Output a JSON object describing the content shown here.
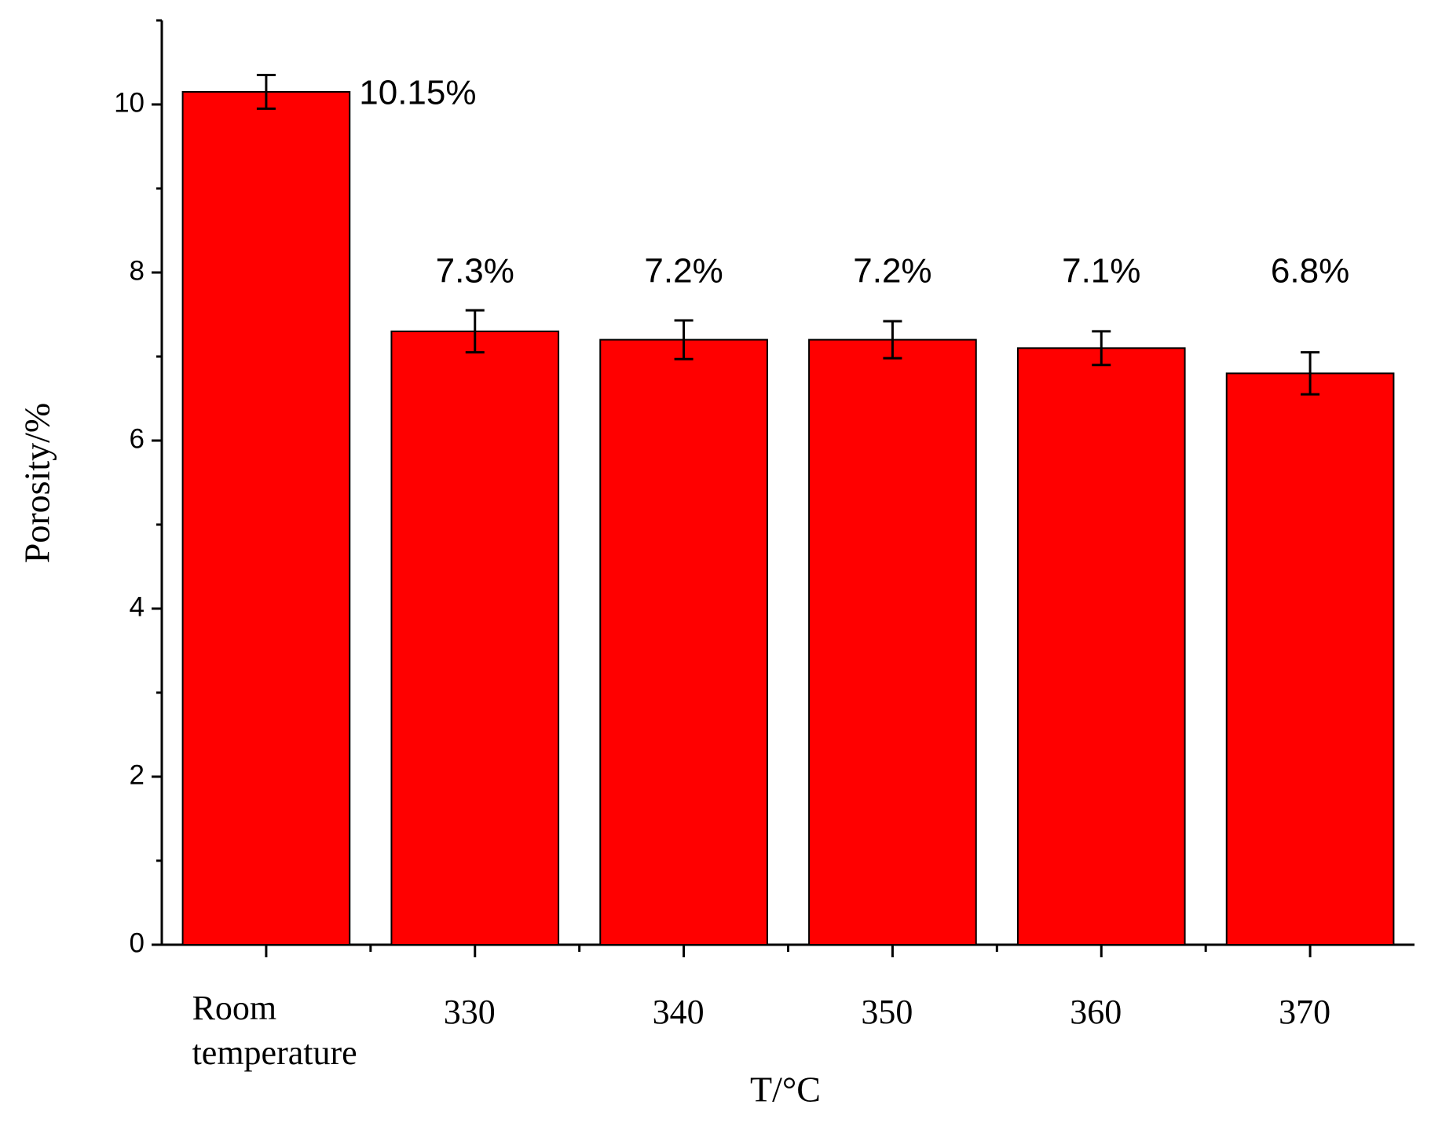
{
  "chart_data": {
    "type": "bar",
    "x_label": "T/°C",
    "y_label": "Porosity/%",
    "categories": [
      "Room temperature",
      "330",
      "340",
      "350",
      "360",
      "370"
    ],
    "values": [
      10.15,
      7.3,
      7.2,
      7.2,
      7.1,
      6.8
    ],
    "value_labels": [
      "10.15%",
      "7.3%",
      "7.2%",
      "7.2%",
      "7.1%",
      "6.8%"
    ],
    "errors": [
      0.2,
      0.25,
      0.23,
      0.22,
      0.2,
      0.25
    ],
    "color": "#ff0000",
    "ylim": [
      0,
      11
    ],
    "yticks": [
      0,
      2,
      4,
      6,
      8,
      10
    ],
    "grid": false
  }
}
